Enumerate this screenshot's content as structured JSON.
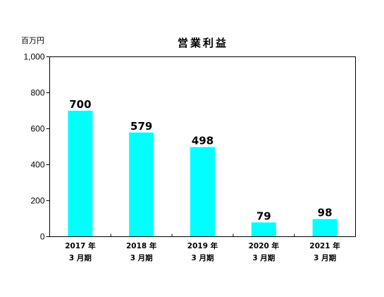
{
  "chart_data": {
    "type": "bar",
    "title": "営業利益",
    "unit_label": "百万円",
    "categories": [
      {
        "year": "2017 年",
        "period": "3 月期"
      },
      {
        "year": "2018 年",
        "period": "3 月期"
      },
      {
        "year": "2019 年",
        "period": "3 月期"
      },
      {
        "year": "2020 年",
        "period": "3 月期"
      },
      {
        "year": "2021 年",
        "period": "3 月期"
      }
    ],
    "values": [
      700,
      579,
      498,
      79,
      98
    ],
    "value_labels": [
      "700",
      "579",
      "498",
      "79",
      "98"
    ],
    "ylim": [
      0,
      1000
    ],
    "yticks": [
      0,
      200,
      400,
      600,
      800,
      1000
    ],
    "ytick_labels": [
      "0",
      "200",
      "400",
      "600",
      "800",
      "1,000"
    ],
    "grid": false,
    "legend": "none",
    "colors": {
      "bar": "#00ffff",
      "frame": "#000000"
    }
  }
}
